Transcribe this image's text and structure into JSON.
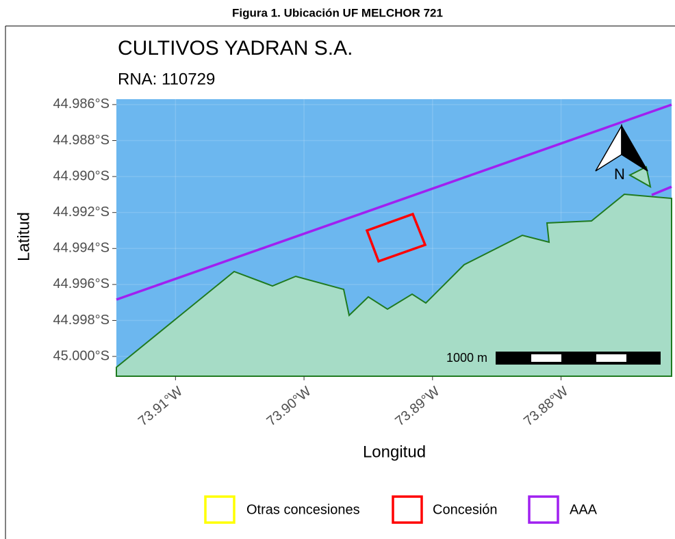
{
  "caption": "Figura 1. Ubicación UF MELCHOR 721",
  "map": {
    "title": "CULTIVOS YADRAN S.A.",
    "subtitle": "RNA: 110729",
    "x_label": "Longitud",
    "y_label": "Latitud",
    "xlim": [
      73.9146,
      73.8714
    ],
    "ylim": [
      44.9857,
      45.0011
    ],
    "xticks": [
      {
        "value": 73.91,
        "label": "73.91°W"
      },
      {
        "value": 73.9,
        "label": "73.90°W"
      },
      {
        "value": 73.89,
        "label": "73.89°W"
      },
      {
        "value": 73.88,
        "label": "73.88°W"
      }
    ],
    "yticks": [
      {
        "value": 44.986,
        "label": "44.986°S"
      },
      {
        "value": 44.988,
        "label": "44.988°S"
      },
      {
        "value": 44.99,
        "label": "44.990°S"
      },
      {
        "value": 44.992,
        "label": "44.992°S"
      },
      {
        "value": 44.994,
        "label": "44.994°S"
      },
      {
        "value": 44.996,
        "label": "44.996°S"
      },
      {
        "value": 44.998,
        "label": "44.998°S"
      },
      {
        "value": 45.0,
        "label": "45.000°S"
      }
    ],
    "scale_bar": "1000 m",
    "north": "N",
    "legend": [
      {
        "name": "Otras concesiones",
        "color": "#ffff00"
      },
      {
        "name": "Concesión",
        "color": "#ff0000"
      },
      {
        "name": "AAA",
        "color": "#a020f0"
      }
    ]
  }
}
